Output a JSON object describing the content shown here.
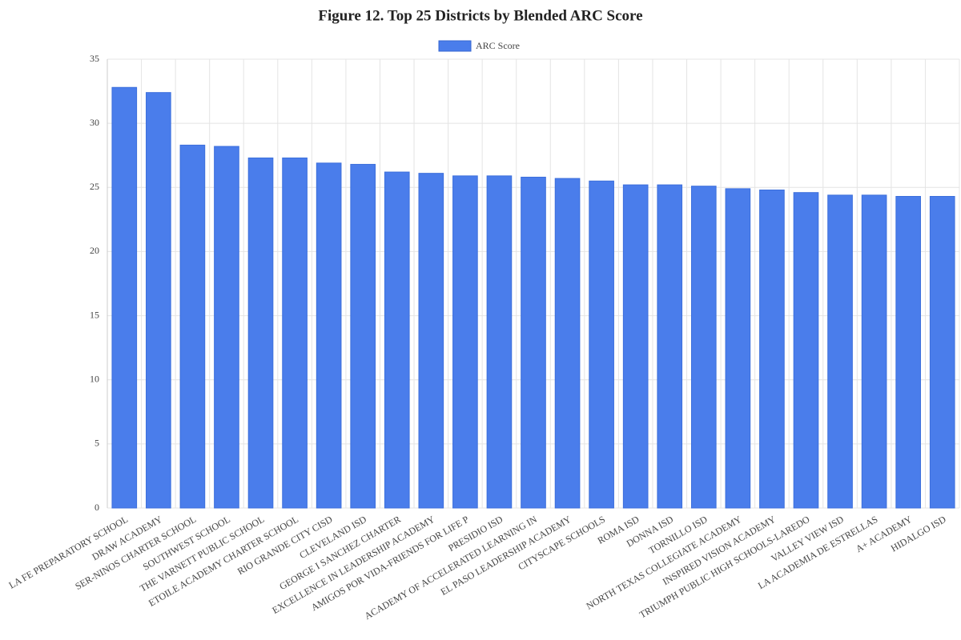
{
  "chart_data": {
    "type": "bar",
    "title": "Figure 12. Top 25 Districts by Blended ARC Score",
    "categories": [
      "LA FE PREPARATORY SCHOOL",
      "DRAW ACADEMY",
      "SER-NINOS CHARTER SCHOOL",
      "SOUTHWEST SCHOOL",
      "THE VARNETT PUBLIC SCHOOL",
      "ETOILE ACADEMY CHARTER SCHOOL",
      "RIO GRANDE CITY CISD",
      "CLEVELAND ISD",
      "GEORGE I SANCHEZ CHARTER",
      "EXCELLENCE IN LEADERSHIP ACADEMY",
      "AMIGOS POR VIDA-FRIENDS FOR LIFE P",
      "PRESIDIO ISD",
      "ACADEMY OF ACCELERATED LEARNING IN",
      "EL PASO LEADERSHIP ACADEMY",
      "CITYSCAPE SCHOOLS",
      "ROMA ISD",
      "DONNA ISD",
      "TORNILLO ISD",
      "NORTH TEXAS COLLEGIATE ACADEMY",
      "INSPIRED VISION ACADEMY",
      "TRIUMPH PUBLIC HIGH SCHOOLS-LAREDO",
      "VALLEY VIEW ISD",
      "LA ACADEMIA DE ESTRELLAS",
      "A+ ACADEMY",
      "HIDALGO ISD"
    ],
    "series": [
      {
        "name": "ARC Score",
        "color": "#4a7deb",
        "values": [
          32.8,
          32.4,
          28.3,
          28.2,
          27.3,
          27.3,
          26.9,
          26.8,
          26.2,
          26.1,
          25.9,
          25.9,
          25.8,
          25.7,
          25.5,
          25.2,
          25.2,
          25.1,
          24.9,
          24.8,
          24.6,
          24.4,
          24.4,
          24.3,
          24.3
        ]
      }
    ],
    "ylim": [
      0,
      35
    ],
    "yticks": [
      0,
      5,
      10,
      15,
      20,
      25,
      30,
      35
    ],
    "grid": true,
    "legend": "top"
  }
}
